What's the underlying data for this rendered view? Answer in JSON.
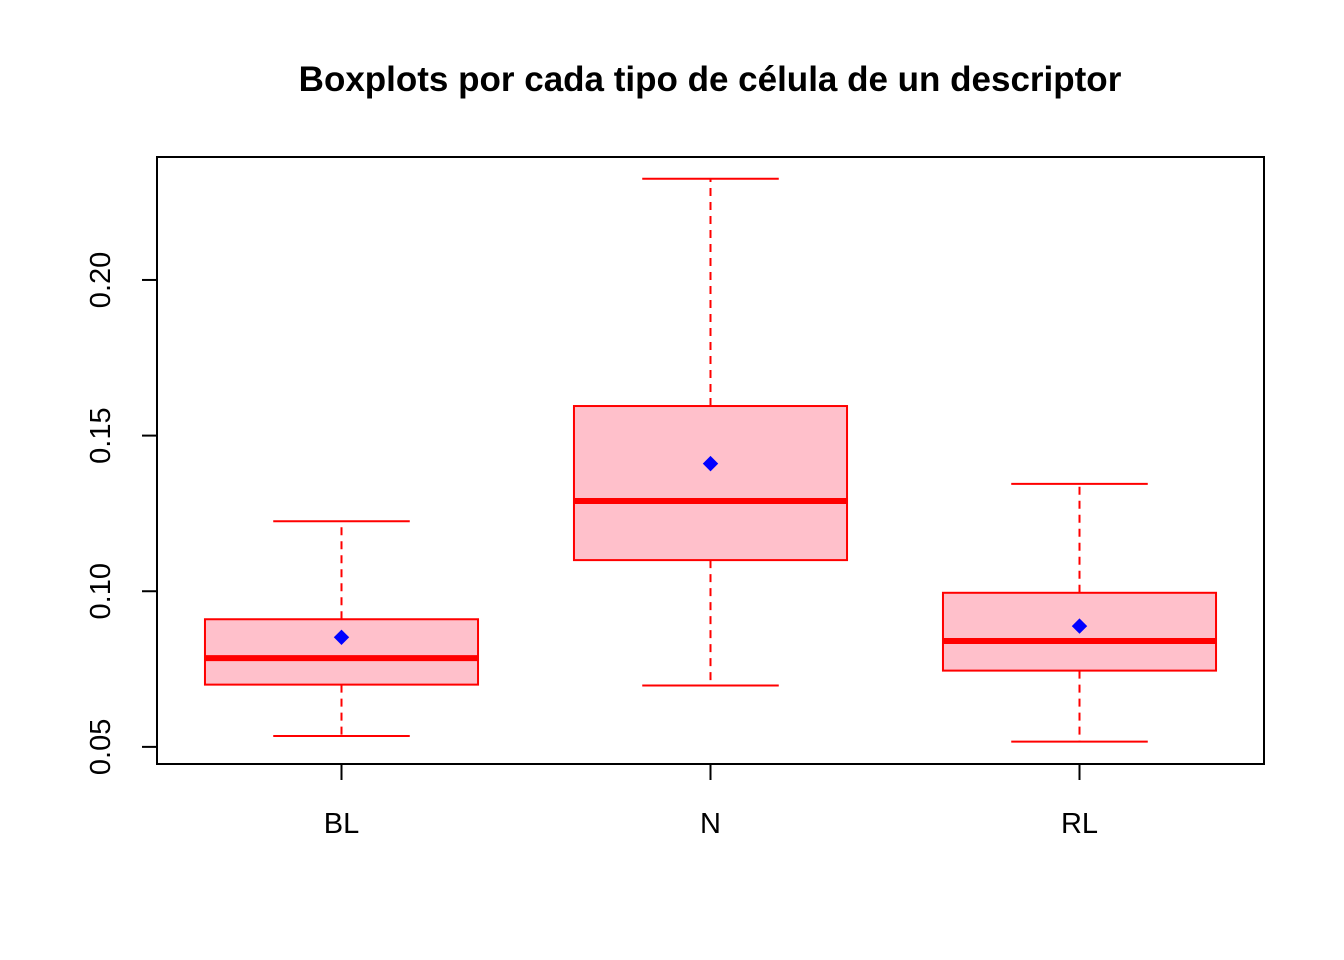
{
  "chart_data": {
    "type": "boxplot",
    "title": "Boxplots por cada tipo de célula de un descriptor",
    "xlabel": "",
    "ylabel": "",
    "categories": [
      "BL",
      "N",
      "RL"
    ],
    "boxes": [
      {
        "category": "BL",
        "whisker_low": 0.0535,
        "q1": 0.07,
        "median": 0.0785,
        "q3": 0.091,
        "whisker_high": 0.1225,
        "mean": 0.0852
      },
      {
        "category": "N",
        "whisker_low": 0.0697,
        "q1": 0.11,
        "median": 0.129,
        "q3": 0.1595,
        "whisker_high": 0.2325,
        "mean": 0.141
      },
      {
        "category": "RL",
        "whisker_low": 0.0517,
        "q1": 0.0745,
        "median": 0.084,
        "q3": 0.0995,
        "whisker_high": 0.1345,
        "mean": 0.0888
      }
    ],
    "ylim": [
      0.0445,
      0.2395
    ],
    "yticks": [
      "0.05",
      "0.10",
      "0.15",
      "0.20"
    ],
    "ytick_values": [
      0.05,
      0.1,
      0.15,
      0.2
    ],
    "grid": false,
    "legend": "none",
    "colors": {
      "box_fill": "#FFC0CB",
      "box_border": "#FF0000",
      "mean_marker": "#0000FF"
    }
  }
}
